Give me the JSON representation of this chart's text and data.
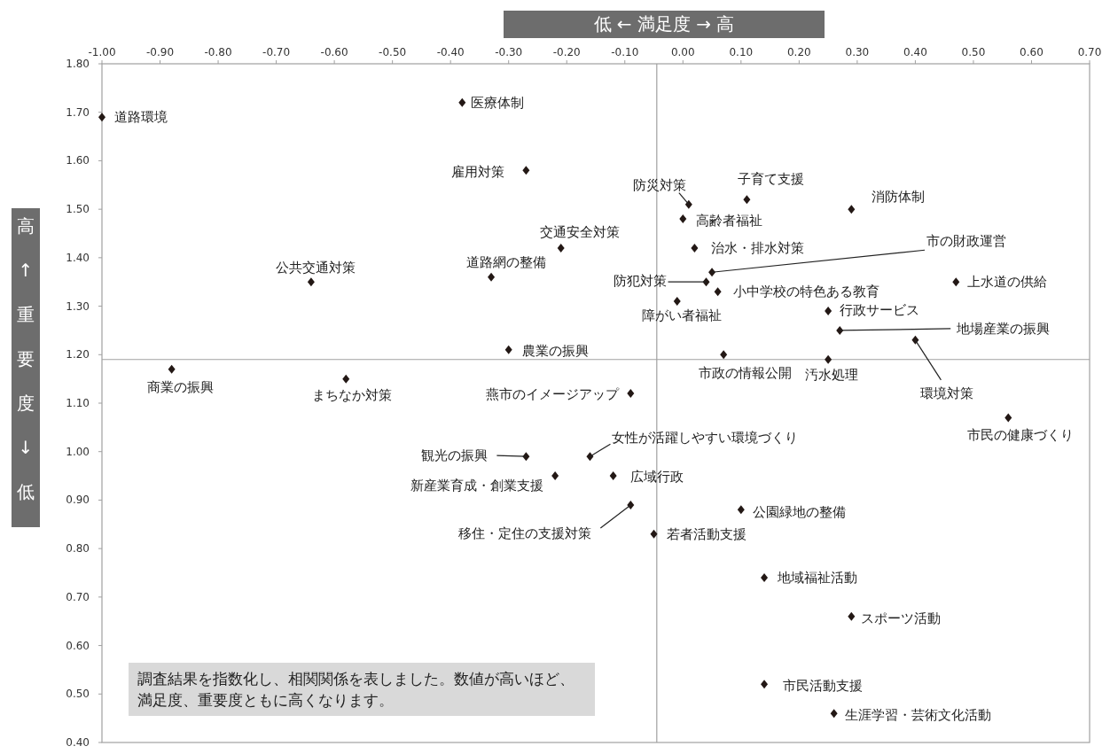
{
  "chart_data": {
    "type": "scatter",
    "xlabel": "低 ← 満足度 → 高",
    "ylabel": "高 ↑ 重要度 ↓ 低",
    "xlim": [
      -1.0,
      0.7
    ],
    "ylim": [
      0.4,
      1.8
    ],
    "xticks": [
      {
        "value": -1.0,
        "label": "-1.00"
      },
      {
        "value": -0.9,
        "label": "-0.90"
      },
      {
        "value": -0.8,
        "label": "-0.80"
      },
      {
        "value": -0.7,
        "label": "-0.70"
      },
      {
        "value": -0.6,
        "label": "-0.60"
      },
      {
        "value": -0.5,
        "label": "-0.50"
      },
      {
        "value": -0.4,
        "label": "-0.40"
      },
      {
        "value": -0.3,
        "label": "-0.30"
      },
      {
        "value": -0.2,
        "label": "-0.20"
      },
      {
        "value": -0.1,
        "label": "-0.10"
      },
      {
        "value": 0.0,
        "label": "0.00"
      },
      {
        "value": 0.1,
        "label": "0.10"
      },
      {
        "value": 0.2,
        "label": "0.20"
      },
      {
        "value": 0.3,
        "label": "0.30"
      },
      {
        "value": 0.4,
        "label": "0.40"
      },
      {
        "value": 0.5,
        "label": "0.50"
      },
      {
        "value": 0.6,
        "label": "0.60"
      },
      {
        "value": 0.7,
        "label": "0.70"
      }
    ],
    "yticks": [
      {
        "value": 0.4,
        "label": "0.40"
      },
      {
        "value": 0.5,
        "label": "0.50"
      },
      {
        "value": 0.6,
        "label": "0.60"
      },
      {
        "value": 0.7,
        "label": "0.70"
      },
      {
        "value": 0.8,
        "label": "0.80"
      },
      {
        "value": 0.9,
        "label": "0.90"
      },
      {
        "value": 1.0,
        "label": "1.00"
      },
      {
        "value": 1.1,
        "label": "1.10"
      },
      {
        "value": 1.2,
        "label": "1.20"
      },
      {
        "value": 1.3,
        "label": "1.30"
      },
      {
        "value": 1.4,
        "label": "1.40"
      },
      {
        "value": 1.5,
        "label": "1.50"
      },
      {
        "value": 1.6,
        "label": "1.60"
      },
      {
        "value": 1.7,
        "label": "1.70"
      },
      {
        "value": 1.8,
        "label": "1.80"
      }
    ],
    "marker": "diamond",
    "series": [
      {
        "color": "#231815",
        "x": [
          -1.0,
          -0.38,
          -0.27,
          0.01,
          0.11,
          0.29,
          0.0,
          -0.21,
          0.02,
          -0.64,
          -0.33,
          0.05,
          0.04,
          0.06,
          0.47,
          -0.01,
          0.25,
          0.27,
          0.4,
          -0.3,
          0.07,
          0.25,
          -0.88,
          -0.58,
          -0.09,
          0.56,
          -0.16,
          -0.27,
          -0.22,
          -0.12,
          -0.09,
          0.1,
          -0.05,
          0.14,
          0.29,
          0.14,
          0.26
        ],
        "values": [
          1.69,
          1.72,
          1.58,
          1.51,
          1.52,
          1.5,
          1.48,
          1.42,
          1.42,
          1.35,
          1.36,
          1.37,
          1.35,
          1.33,
          1.35,
          1.31,
          1.29,
          1.25,
          1.23,
          1.21,
          1.2,
          1.19,
          1.17,
          1.15,
          1.12,
          1.07,
          0.99,
          0.99,
          0.95,
          0.95,
          0.89,
          0.88,
          0.83,
          0.74,
          0.66,
          0.52,
          0.46
        ]
      }
    ],
    "ref_lines": [
      {
        "axis": "x",
        "value": -0.045,
        "color": "#a0a0a0"
      },
      {
        "axis": "y",
        "value": 1.19,
        "color": "#a0a0a0"
      }
    ],
    "annotations": [
      {
        "text": "道路環境",
        "x": -1.0,
        "y": 1.69
      },
      {
        "text": "医療体制",
        "x": -0.38,
        "y": 1.72
      },
      {
        "text": "雇用対策",
        "x": -0.27,
        "y": 1.58
      },
      {
        "text": "防災対策",
        "x": 0.01,
        "y": 1.51
      },
      {
        "text": "子育て支援",
        "x": 0.11,
        "y": 1.52
      },
      {
        "text": "消防体制",
        "x": 0.29,
        "y": 1.5
      },
      {
        "text": "高齢者福祉",
        "x": 0.0,
        "y": 1.48
      },
      {
        "text": "交通安全対策",
        "x": -0.21,
        "y": 1.42
      },
      {
        "text": "治水・排水対策",
        "x": 0.02,
        "y": 1.42
      },
      {
        "text": "公共交通対策",
        "x": -0.64,
        "y": 1.35
      },
      {
        "text": "道路網の整備",
        "x": -0.33,
        "y": 1.36
      },
      {
        "text": "市の財政運営",
        "x": 0.05,
        "y": 1.37
      },
      {
        "text": "防犯対策",
        "x": 0.04,
        "y": 1.35
      },
      {
        "text": "小中学校の特色ある教育",
        "x": 0.06,
        "y": 1.33
      },
      {
        "text": "上水道の供給",
        "x": 0.47,
        "y": 1.35
      },
      {
        "text": "障がい者福祉",
        "x": -0.01,
        "y": 1.31
      },
      {
        "text": "行政サービス",
        "x": 0.25,
        "y": 1.29
      },
      {
        "text": "地場産業の振興",
        "x": 0.27,
        "y": 1.25
      },
      {
        "text": "環境対策",
        "x": 0.4,
        "y": 1.23
      },
      {
        "text": "農業の振興",
        "x": -0.3,
        "y": 1.21
      },
      {
        "text": "市政の情報公開",
        "x": 0.07,
        "y": 1.2
      },
      {
        "text": "汚水処理",
        "x": 0.25,
        "y": 1.19
      },
      {
        "text": "商業の振興",
        "x": -0.88,
        "y": 1.17
      },
      {
        "text": "まちなか対策",
        "x": -0.58,
        "y": 1.15
      },
      {
        "text": "燕市のイメージアップ",
        "x": -0.09,
        "y": 1.12
      },
      {
        "text": "市民の健康づくり",
        "x": 0.56,
        "y": 1.07
      },
      {
        "text": "女性が活躍しやすい環境づくり",
        "x": -0.16,
        "y": 0.99
      },
      {
        "text": "観光の振興",
        "x": -0.27,
        "y": 0.99
      },
      {
        "text": "新産業育成・創業支援",
        "x": -0.22,
        "y": 0.95
      },
      {
        "text": "広域行政",
        "x": -0.12,
        "y": 0.95
      },
      {
        "text": "移住・定住の支援対策",
        "x": -0.09,
        "y": 0.89
      },
      {
        "text": "公園緑地の整備",
        "x": 0.1,
        "y": 0.88
      },
      {
        "text": "若者活動支援",
        "x": -0.05,
        "y": 0.83
      },
      {
        "text": "地域福祉活動",
        "x": 0.14,
        "y": 0.74
      },
      {
        "text": "スポーツ活動",
        "x": 0.29,
        "y": 0.66
      },
      {
        "text": "市民活動支援",
        "x": 0.14,
        "y": 0.52
      },
      {
        "text": "生涯学習・芸術文化活動",
        "x": 0.26,
        "y": 0.46
      },
      "調査結果を指数化し、相関関係を表しました。数値が高いほど、満足度、重要度ともに高くなります。"
    ]
  }
}
